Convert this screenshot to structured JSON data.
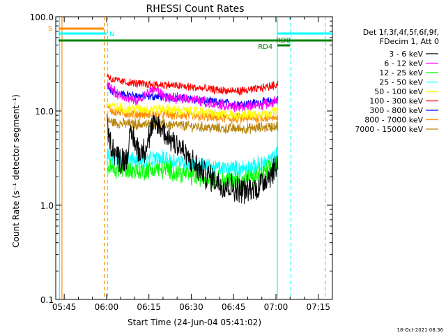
{
  "chart_data": {
    "type": "line",
    "title": "RHESSI Count Rates",
    "xlabel": "Start Time (24-Jun-04 05:41:02)",
    "ylabel": "Count Rate (s⁻¹ detector segment⁻¹)",
    "yscale": "log",
    "ylim": [
      0.1,
      100
    ],
    "xlim_minutes": [
      342,
      440
    ],
    "x_ticks": [
      {
        "label": "05:45",
        "minute": 345
      },
      {
        "label": "06:00",
        "minute": 360
      },
      {
        "label": "06:15",
        "minute": 375
      },
      {
        "label": "06:30",
        "minute": 390
      },
      {
        "label": "06:45",
        "minute": 405
      },
      {
        "label": "07:00",
        "minute": 420
      },
      {
        "label": "07:15",
        "minute": 435
      }
    ],
    "y_ticks": [
      {
        "label": "0.1",
        "value": 0.1
      },
      {
        "label": "1.0",
        "value": 1.0
      },
      {
        "label": "10.0",
        "value": 10.0
      },
      {
        "label": "100.0",
        "value": 100.0
      }
    ],
    "legend_header": [
      "Det 1f,3f,4f,5f,6f,9f,",
      "FDecim 1, Att 0"
    ],
    "legend_placement": "right",
    "timestamp": "18-Oct-2021 08:36",
    "series": [
      {
        "name": "3 - 6 keV",
        "color": "#000000",
        "x": [
          360.2,
          361,
          363,
          365,
          367,
          368,
          369,
          370,
          372,
          374,
          376,
          378,
          380,
          382,
          384,
          386,
          388,
          390,
          392,
          395,
          398,
          400,
          403,
          406,
          410,
          413,
          416,
          419,
          420.8
        ],
        "y": [
          7.0,
          5.0,
          3.6,
          3.0,
          3.2,
          4.5,
          5.8,
          4.6,
          3.6,
          4.2,
          6.5,
          7.2,
          6.2,
          5.2,
          4.8,
          4.2,
          3.4,
          2.9,
          2.5,
          2.1,
          1.9,
          1.7,
          1.6,
          1.5,
          1.45,
          1.5,
          1.9,
          2.3,
          2.9
        ]
      },
      {
        "name": "6 - 12 keV",
        "color": "#ff00ff",
        "x": [
          360.2,
          362,
          364,
          366,
          368,
          370,
          372,
          374,
          376,
          377,
          378,
          379,
          380,
          382,
          384,
          386,
          388,
          390,
          393,
          396,
          400,
          404,
          408,
          412,
          416,
          419,
          420.8
        ],
        "y": [
          20,
          16.5,
          15,
          14.5,
          13.5,
          12.6,
          13.2,
          15,
          16.5,
          17,
          16.6,
          15.5,
          14.5,
          13.8,
          13.6,
          13.7,
          13.8,
          13.4,
          12.8,
          12.2,
          11.8,
          11.2,
          11.0,
          11.4,
          11.8,
          12.4,
          13.4
        ]
      },
      {
        "name": "12 - 25 keV",
        "color": "#00ff00",
        "x": [
          360.2,
          362,
          365,
          368,
          371,
          374,
          377,
          380,
          383,
          386,
          389,
          392,
          395,
          398,
          401,
          404,
          407,
          410,
          413,
          416,
          419,
          420.8
        ],
        "y": [
          2.6,
          2.4,
          2.4,
          2.35,
          2.3,
          2.35,
          2.4,
          2.4,
          2.3,
          2.2,
          2.1,
          2.0,
          1.95,
          1.9,
          1.85,
          1.85,
          1.85,
          1.9,
          2.0,
          2.2,
          2.5,
          2.9
        ]
      },
      {
        "name": "25 - 50 keV",
        "color": "#00ffff",
        "x": [
          360.2,
          362,
          365,
          368,
          371,
          374,
          377,
          380,
          383,
          386,
          389,
          392,
          395,
          398,
          401,
          404,
          407,
          410,
          413,
          416,
          419,
          420.8
        ],
        "y": [
          3.3,
          3.2,
          3.1,
          3.05,
          3.0,
          3.0,
          3.05,
          3.1,
          3.0,
          2.9,
          2.8,
          2.7,
          2.6,
          2.5,
          2.45,
          2.45,
          2.45,
          2.5,
          2.6,
          2.8,
          3.1,
          3.6
        ]
      },
      {
        "name": "50 - 100 keV",
        "color": "#ffff00",
        "x": [
          360.2,
          362,
          365,
          368,
          371,
          374,
          377,
          380,
          383,
          386,
          389,
          392,
          395,
          398,
          401,
          404,
          407,
          410,
          413,
          416,
          419,
          420.8
        ],
        "y": [
          12.0,
          11.0,
          10.8,
          10.6,
          10.5,
          10.4,
          10.5,
          10.5,
          10.3,
          10.1,
          10.0,
          9.8,
          9.6,
          9.4,
          9.2,
          9.1,
          9.1,
          9.2,
          9.3,
          9.5,
          9.7,
          10.0
        ]
      },
      {
        "name": "100 - 300 keV",
        "color": "#ff0000",
        "x": [
          360.2,
          362,
          365,
          368,
          371,
          374,
          377,
          380,
          383,
          386,
          389,
          392,
          395,
          398,
          401,
          404,
          407,
          410,
          413,
          416,
          419,
          420.8
        ],
        "y": [
          24,
          21.5,
          20.5,
          20,
          19.5,
          19.2,
          19,
          19,
          18.7,
          18.3,
          18,
          17.6,
          17.2,
          16.8,
          16.5,
          16.3,
          16.3,
          16.5,
          17,
          17.8,
          18.6,
          19.5
        ]
      },
      {
        "name": "300 - 800 keV",
        "color": "#0000ff",
        "x": [
          360.2,
          362,
          365,
          368,
          371,
          374,
          377,
          380,
          383,
          386,
          389,
          392,
          395,
          398,
          401,
          404,
          407,
          410,
          413,
          416,
          419,
          420.8
        ],
        "y": [
          18,
          16,
          15.2,
          14.8,
          14.5,
          14.3,
          14.2,
          14.2,
          14,
          13.7,
          13.4,
          13.1,
          12.8,
          12.5,
          12.2,
          12.0,
          11.9,
          12.0,
          12.2,
          12.5,
          12.8,
          13.2
        ]
      },
      {
        "name": "800 - 7000 keV",
        "color": "#ff8c00",
        "x": [
          360.2,
          362,
          365,
          368,
          371,
          374,
          377,
          380,
          383,
          386,
          389,
          392,
          395,
          398,
          401,
          404,
          407,
          410,
          413,
          416,
          419,
          420.8
        ],
        "y": [
          11,
          10,
          9.6,
          9.4,
          9.3,
          9.2,
          9.2,
          9.2,
          9.1,
          9.0,
          8.9,
          8.7,
          8.6,
          8.5,
          8.4,
          8.3,
          8.3,
          8.3,
          8.4,
          8.5,
          8.6,
          8.8
        ]
      },
      {
        "name": "7000 - 15000 keV",
        "color": "#b8860b",
        "x": [
          360.2,
          362,
          365,
          368,
          371,
          374,
          377,
          380,
          383,
          386,
          389,
          392,
          395,
          398,
          401,
          404,
          407,
          410,
          413,
          416,
          419,
          420.8
        ],
        "y": [
          8.0,
          7.6,
          7.4,
          7.3,
          7.2,
          7.2,
          7.2,
          7.2,
          7.1,
          7.0,
          6.9,
          6.8,
          6.7,
          6.6,
          6.5,
          6.5,
          6.5,
          6.5,
          6.6,
          6.7,
          6.8,
          7.0
        ]
      }
    ],
    "flag_bars": [
      {
        "label": "S",
        "color": "#ff8c00",
        "start": 343.0,
        "end": 359.0,
        "row": 1
      },
      {
        "label": "N",
        "color": "#00ffff",
        "start": 343.0,
        "end": 360.0,
        "row": 2
      },
      {
        "label": "",
        "color": "#00ffff",
        "start": 420.5,
        "end": 440.0,
        "row": 2
      },
      {
        "label": "",
        "color": "#008000",
        "start": 343.0,
        "end": 440.0,
        "row": 3
      },
      {
        "label": "RD0",
        "color": "#008000",
        "start": 420.5,
        "end": 420.5,
        "row": 3
      },
      {
        "label": "RD4",
        "color": "#008000",
        "start": 420.5,
        "end": 425.0,
        "row": 4
      }
    ],
    "markers": [
      {
        "minute": 343.3,
        "color": "#00ffff",
        "style": "solid"
      },
      {
        "minute": 344.2,
        "color": "#ff8c00",
        "style": "solid"
      },
      {
        "minute": 359.2,
        "color": "#ff8c00",
        "style": "dashed"
      },
      {
        "minute": 360.4,
        "color": "#00ffff",
        "style": "dashed"
      },
      {
        "minute": 420.5,
        "color": "#00ffff",
        "style": "solid"
      },
      {
        "minute": 425.3,
        "color": "#00ffff",
        "style": "dashed"
      },
      {
        "minute": 437.5,
        "color": "#00ffff",
        "style": "dashed"
      }
    ]
  }
}
